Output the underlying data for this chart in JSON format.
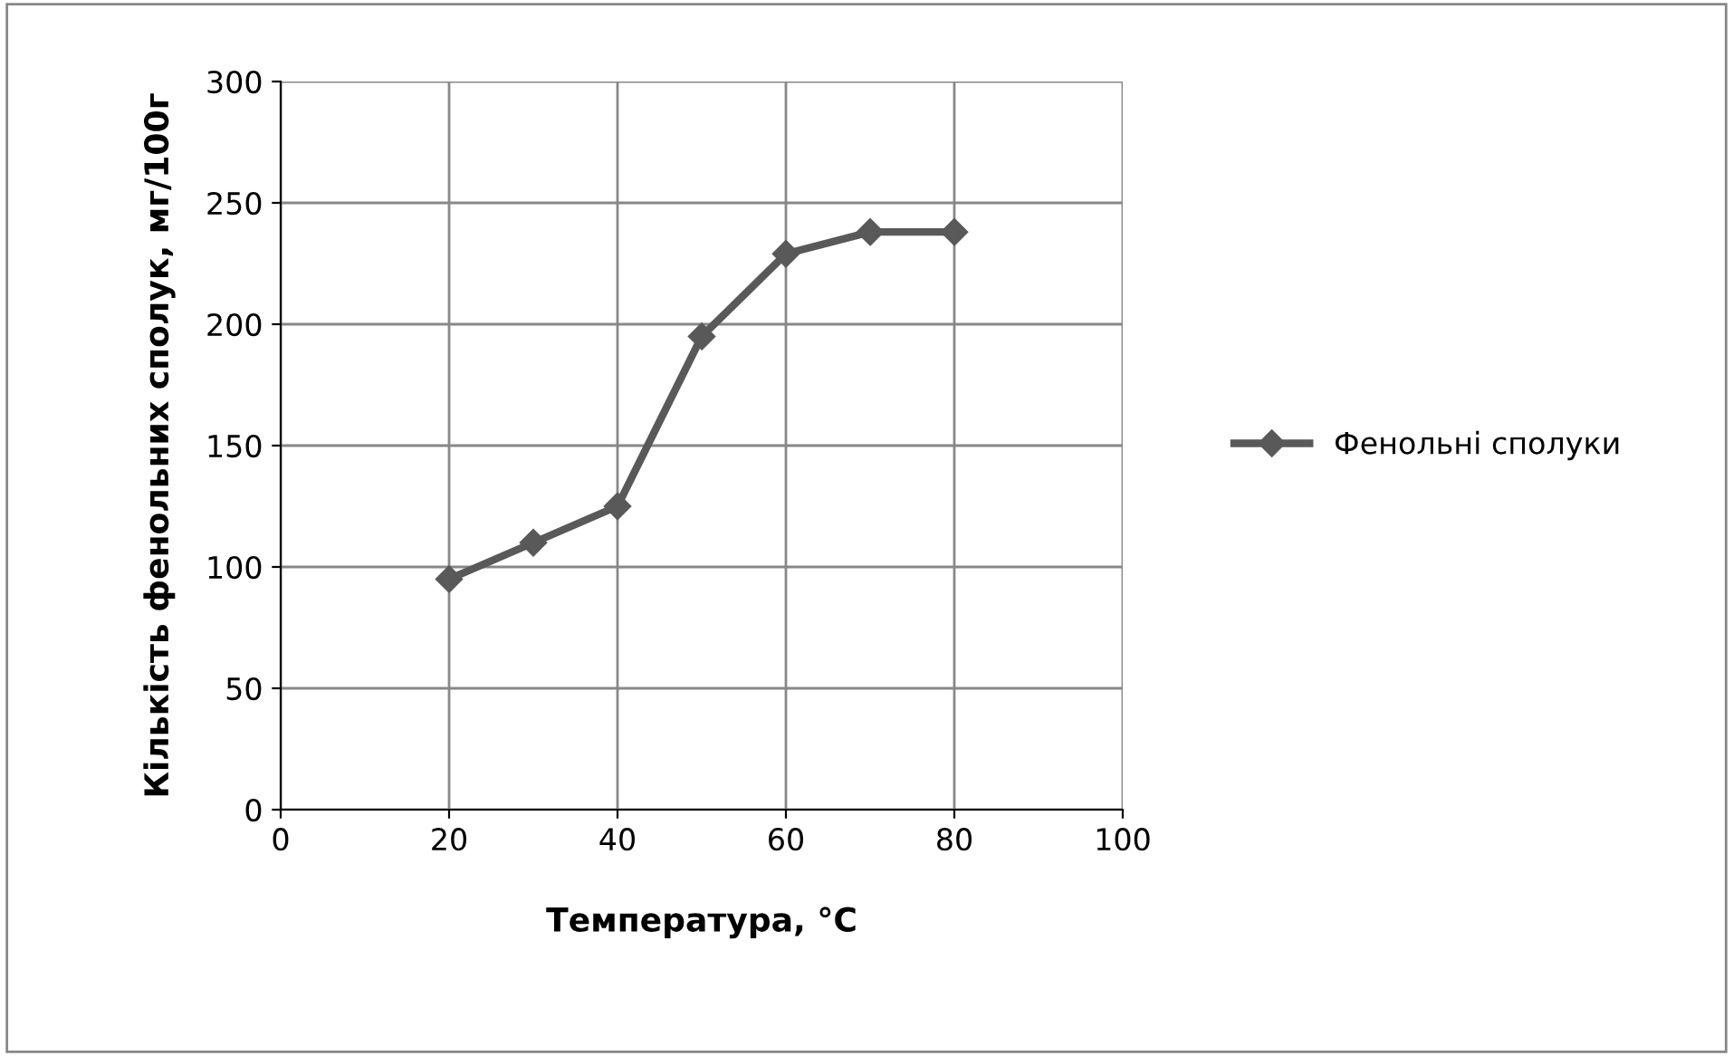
{
  "chart_data": {
    "type": "line",
    "xlabel": "Температура, °С",
    "ylabel": "Кількість фенольних сполук, мг/100г",
    "x": [
      20,
      30,
      40,
      50,
      60,
      70,
      80
    ],
    "series": [
      {
        "name": "Фенольні сполуки",
        "color": "#595959",
        "values": [
          95,
          110,
          125,
          195,
          229,
          238,
          238
        ]
      }
    ],
    "xlim": [
      0,
      100
    ],
    "xticks": [
      0,
      20,
      40,
      60,
      80,
      100
    ],
    "ylim": [
      0,
      300
    ],
    "yticks": [
      0,
      50,
      100,
      150,
      200,
      250,
      300
    ],
    "grid": true,
    "legend": "right",
    "marker": "diamond",
    "line_style": "solid"
  }
}
